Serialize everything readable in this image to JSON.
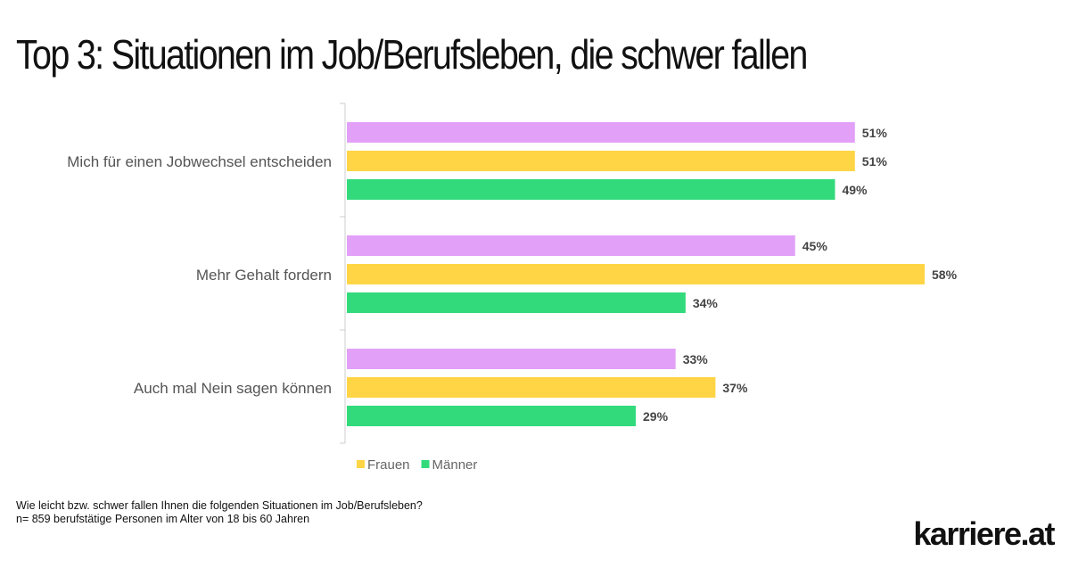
{
  "title": "Top 3: Situationen im Job/Berufsleben, die schwer fallen",
  "chart_data": {
    "type": "bar",
    "orientation": "horizontal",
    "title": "Top 3: Situationen im Job/Berufsleben, die schwer fallen",
    "categories": [
      "Mich für einen Jobwechsel entscheiden",
      "Mehr Gehalt fordern",
      "Auch mal Nein sagen können"
    ],
    "series": [
      {
        "name": "",
        "color": "#e2a0f8",
        "values": [
          51,
          45,
          33
        ]
      },
      {
        "name": "Frauen",
        "color": "#ffd545",
        "values": [
          51,
          58,
          37
        ]
      },
      {
        "name": "Männer",
        "color": "#32da7b",
        "values": [
          49,
          34,
          29
        ]
      }
    ],
    "value_suffix": "%",
    "xlim": [
      0,
      100
    ],
    "grid": false,
    "legend_position": "bottom"
  },
  "footnote": {
    "question": "Wie leicht bzw. schwer fallen Ihnen die folgenden Situationen im Job/Berufsleben?",
    "sample": "n= 859 berufstätige Personen im Alter von 18 bis 60 Jahren"
  },
  "logo": "karriere.at"
}
